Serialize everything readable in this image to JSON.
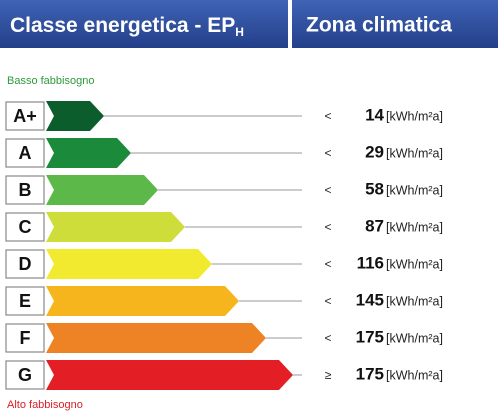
{
  "header": {
    "title": "Classe energetica - EP",
    "title_sub": "H",
    "zone": "Zona climatica"
  },
  "top_label": "Basso fabbisogno",
  "bottom_label": "Alto fabbisogno",
  "classes": [
    {
      "label": "A+",
      "color": "#0b5d2b",
      "operator": "<",
      "value": 14,
      "unit": "[kWh/m²a]"
    },
    {
      "label": "A",
      "color": "#1b8a3a",
      "operator": "<",
      "value": 29,
      "unit": "[kWh/m²a]"
    },
    {
      "label": "B",
      "color": "#5cb848",
      "operator": "<",
      "value": 58,
      "unit": "[kWh/m²a]"
    },
    {
      "label": "C",
      "color": "#cfdd3a",
      "operator": "<",
      "value": 87,
      "unit": "[kWh/m²a]"
    },
    {
      "label": "D",
      "color": "#f1ea2f",
      "operator": "<",
      "value": 116,
      "unit": "[kWh/m²a]"
    },
    {
      "label": "E",
      "color": "#f7b51d",
      "operator": "<",
      "value": 145,
      "unit": "[kWh/m²a]"
    },
    {
      "label": "F",
      "color": "#ee8326",
      "operator": "<",
      "value": 175,
      "unit": "[kWh/m²a]"
    },
    {
      "label": "G",
      "color": "#e31e24",
      "operator": "≥",
      "value": 175,
      "unit": "[kWh/m²a]"
    }
  ]
}
